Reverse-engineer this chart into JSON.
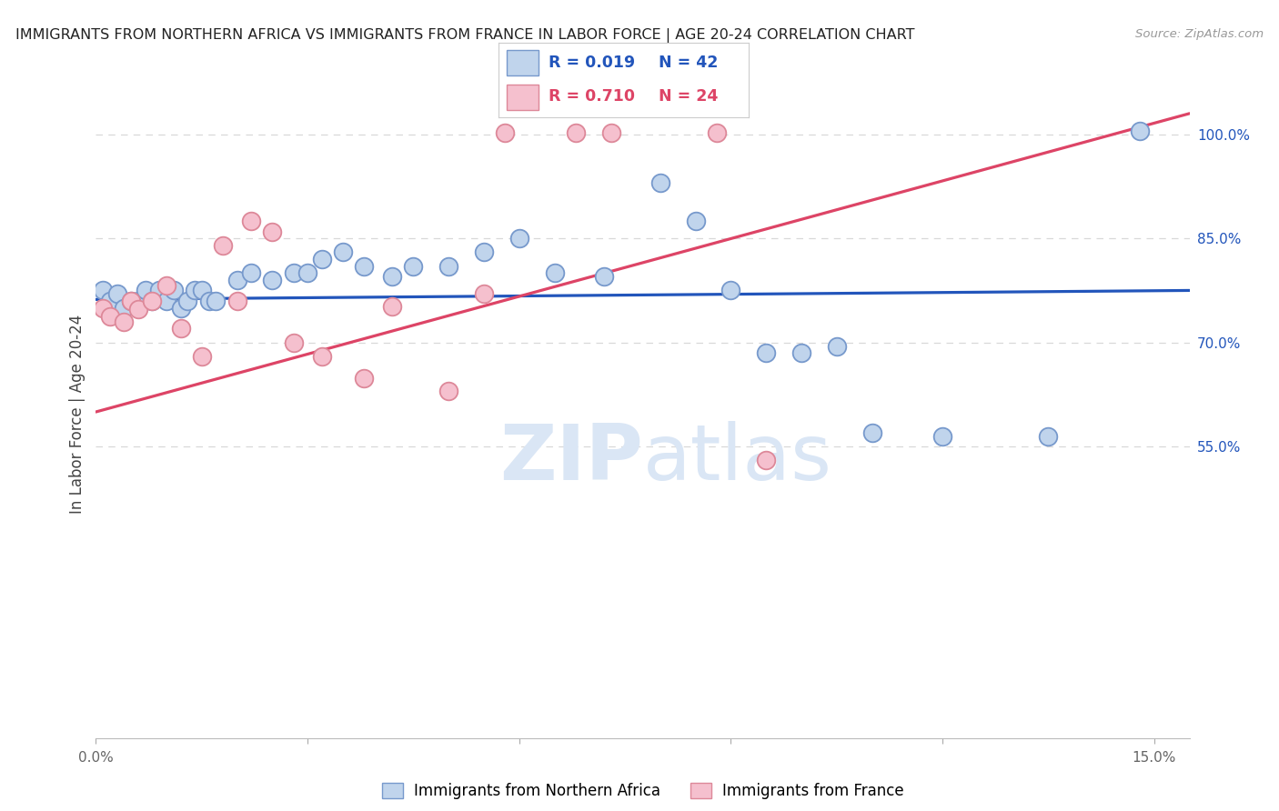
{
  "title": "IMMIGRANTS FROM NORTHERN AFRICA VS IMMIGRANTS FROM FRANCE IN LABOR FORCE | AGE 20-24 CORRELATION CHART",
  "source": "Source: ZipAtlas.com",
  "ylabel": "In Labor Force | Age 20-24",
  "legend_blue_r": "R = 0.019",
  "legend_blue_n": "N = 42",
  "legend_pink_r": "R = 0.710",
  "legend_pink_n": "N = 24",
  "legend_blue_label": "Immigrants from Northern Africa",
  "legend_pink_label": "Immigrants from France",
  "xlim": [
    0.0,
    0.155
  ],
  "ylim": [
    0.13,
    1.065
  ],
  "yticks_right": [
    0.55,
    0.7,
    0.85,
    1.0
  ],
  "ytick_right_labels": [
    "55.0%",
    "70.0%",
    "85.0%",
    "100.0%"
  ],
  "blue_fill": "#c0d4ec",
  "blue_edge": "#7799cc",
  "blue_line": "#2255bb",
  "pink_fill": "#f5c0ce",
  "pink_edge": "#dd8899",
  "pink_line": "#dd4466",
  "watermark_color": "#dae6f5",
  "bg_color": "#ffffff",
  "grid_color": "#d8d8d8",
  "blue_x": [
    0.001,
    0.002,
    0.003,
    0.004,
    0.005,
    0.006,
    0.007,
    0.008,
    0.009,
    0.01,
    0.011,
    0.012,
    0.013,
    0.014,
    0.015,
    0.016,
    0.017,
    0.02,
    0.022,
    0.025,
    0.028,
    0.03,
    0.032,
    0.035,
    0.038,
    0.042,
    0.045,
    0.05,
    0.055,
    0.06,
    0.065,
    0.072,
    0.08,
    0.085,
    0.09,
    0.095,
    0.1,
    0.105,
    0.11,
    0.12,
    0.135,
    0.148
  ],
  "blue_y": [
    0.775,
    0.76,
    0.77,
    0.75,
    0.76,
    0.76,
    0.775,
    0.76,
    0.775,
    0.76,
    0.775,
    0.75,
    0.76,
    0.775,
    0.775,
    0.76,
    0.76,
    0.79,
    0.8,
    0.79,
    0.8,
    0.8,
    0.82,
    0.83,
    0.81,
    0.795,
    0.81,
    0.81,
    0.83,
    0.85,
    0.8,
    0.795,
    0.93,
    0.875,
    0.775,
    0.685,
    0.685,
    0.695,
    0.57,
    0.565,
    0.565,
    1.005
  ],
  "pink_x": [
    0.001,
    0.002,
    0.004,
    0.005,
    0.006,
    0.008,
    0.01,
    0.012,
    0.015,
    0.018,
    0.02,
    0.022,
    0.025,
    0.028,
    0.032,
    0.038,
    0.042,
    0.05,
    0.055,
    0.058,
    0.068,
    0.073,
    0.088,
    0.095
  ],
  "pink_y": [
    0.75,
    0.738,
    0.73,
    0.76,
    0.748,
    0.76,
    0.782,
    0.72,
    0.68,
    0.84,
    0.76,
    0.875,
    0.86,
    0.7,
    0.68,
    0.648,
    0.752,
    0.63,
    0.77,
    1.002,
    1.002,
    1.002,
    1.002,
    0.53
  ],
  "blue_trend_x": [
    0.0,
    0.155
  ],
  "blue_trend_y": [
    0.762,
    0.775
  ],
  "pink_trend_x": [
    0.0,
    0.155
  ],
  "pink_trend_y": [
    0.6,
    1.03
  ]
}
